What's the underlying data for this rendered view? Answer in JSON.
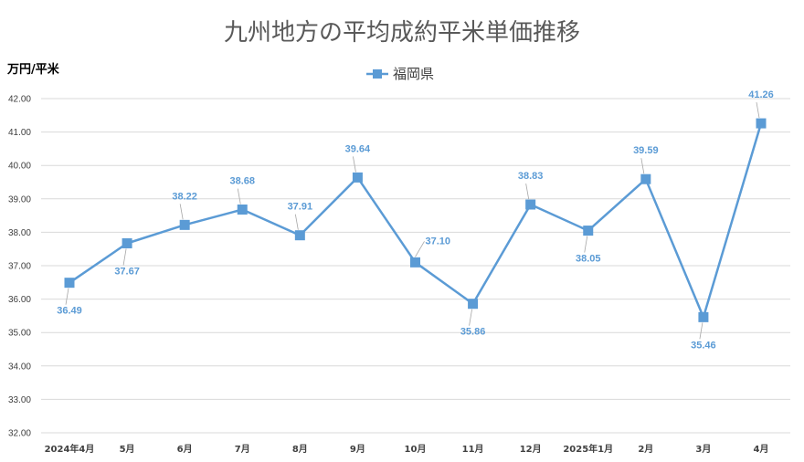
{
  "chart_data": {
    "type": "line",
    "title": "九州地方の平均成約平米単価推移",
    "ylabel": "万円/平米",
    "xlabel": "",
    "categories": [
      "2024年4月",
      "5月",
      "6月",
      "7月",
      "8月",
      "9月",
      "10月",
      "11月",
      "12月",
      "2025年1月",
      "2月",
      "3月",
      "4月"
    ],
    "series": [
      {
        "name": "福岡県",
        "values": [
          36.49,
          37.67,
          38.22,
          38.68,
          37.91,
          39.64,
          37.1,
          35.86,
          38.83,
          38.05,
          39.59,
          35.46,
          41.26
        ],
        "data_labels": [
          "36.49",
          "37.67",
          "38.22",
          "38.68",
          "37.91",
          "39.64",
          "37.10",
          "35.86",
          "38.83",
          "38.05",
          "39.59",
          "35.46",
          "41.26"
        ],
        "label_position": [
          "below",
          "below",
          "above",
          "above",
          "above",
          "above",
          "right",
          "below",
          "above",
          "below",
          "above",
          "below",
          "above"
        ]
      }
    ],
    "ylim": [
      32,
      42
    ],
    "yticks": [
      "32.00",
      "33.00",
      "34.00",
      "35.00",
      "36.00",
      "37.00",
      "38.00",
      "39.00",
      "40.00",
      "41.00",
      "42.00"
    ],
    "grid": true,
    "legend_position": "top-center",
    "colors": {
      "series": "#5b9bd5",
      "grid": "#d9d9d9",
      "title": "#595959"
    }
  }
}
